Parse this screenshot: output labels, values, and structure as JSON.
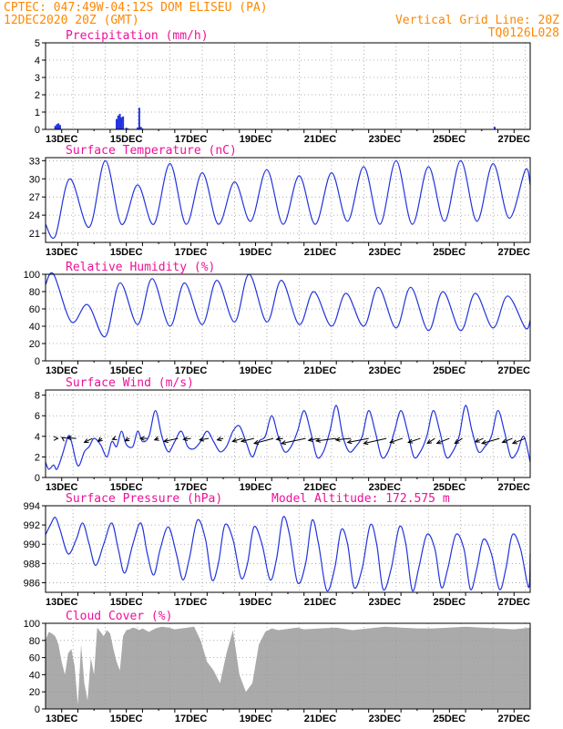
{
  "header": {
    "line1_left": "CPTEC:  047:49W-04:12S  DOM ELISEU (PA)",
    "line2_left": "12DEC2020 20Z (GMT)",
    "line1_right": "Vertical Grid Line: 20Z",
    "line2_right": "TQ0126L028"
  },
  "colors": {
    "header": "#ff8800",
    "panel_title": "#ee1099",
    "series": "#2233dd",
    "cloud": "#aaaaaa",
    "grid": "#999999"
  },
  "chart_data": [
    {
      "id": "precip",
      "type": "bar",
      "title": "Precipitation (mm/h)",
      "ylim": [
        0,
        5
      ],
      "yticks": [
        0,
        1,
        2,
        3,
        4,
        5
      ],
      "xlim_days": [
        0,
        15
      ],
      "x_tick_labels": [
        "13DEC",
        "15DEC",
        "17DEC",
        "19DEC",
        "21DEC",
        "23DEC",
        "25DEC",
        "27DEC"
      ],
      "x_days": [
        0.3,
        0.35,
        0.4,
        0.45,
        2.2,
        2.25,
        2.3,
        2.35,
        2.4,
        2.5,
        2.55,
        2.85,
        2.9,
        2.95,
        3.0,
        13.9
      ],
      "values": [
        0.2,
        0.3,
        0.35,
        0.25,
        0.6,
        0.8,
        0.9,
        0.7,
        0.75,
        0.1,
        0.05,
        0.1,
        1.25,
        0.15,
        0.05,
        0.15
      ]
    },
    {
      "id": "temperature",
      "type": "line",
      "title": "Surface Temperature (nC)",
      "ylim": [
        19.5,
        33.5
      ],
      "yticks": [
        21,
        24,
        27,
        30,
        33
      ],
      "xlim_days": [
        0,
        15
      ],
      "x_tick_labels": [
        "13DEC",
        "15DEC",
        "17DEC",
        "19DEC",
        "21DEC",
        "23DEC",
        "25DEC",
        "27DEC"
      ],
      "max_days": [
        0.75,
        1.85,
        2.85,
        3.85,
        4.85,
        5.85,
        6.85,
        7.85,
        8.85,
        9.85,
        10.85,
        11.85,
        12.85,
        13.85,
        14.85
      ],
      "max_values": [
        30.0,
        33.0,
        29.0,
        32.5,
        31.0,
        29.5,
        31.5,
        30.5,
        31.0,
        32.0,
        33.0,
        32.0,
        33.0,
        32.5,
        31.5
      ],
      "min_days": [
        0.3,
        1.35,
        2.35,
        3.35,
        4.35,
        5.35,
        6.35,
        7.35,
        8.35,
        9.35,
        10.35,
        11.35,
        12.35,
        13.35,
        14.35
      ],
      "min_values": [
        20.5,
        22.0,
        22.5,
        22.5,
        22.5,
        22.5,
        23.0,
        22.5,
        22.5,
        23.0,
        22.5,
        22.5,
        23.0,
        23.0,
        23.5
      ],
      "start_value": 22.5,
      "end_value": 29.0
    },
    {
      "id": "humidity",
      "type": "line",
      "title": "Relative Humidity (%)",
      "ylim": [
        0,
        100
      ],
      "yticks": [
        0,
        20,
        40,
        60,
        80,
        100
      ],
      "xlim_days": [
        0,
        15
      ],
      "x_tick_labels": [
        "13DEC",
        "15DEC",
        "17DEC",
        "19DEC",
        "21DEC",
        "23DEC",
        "25DEC",
        "27DEC"
      ],
      "max_days": [
        0.25,
        1.3,
        2.3,
        3.3,
        4.3,
        5.3,
        6.3,
        7.3,
        8.3,
        9.3,
        10.3,
        11.3,
        12.3,
        13.3,
        14.3
      ],
      "max_values": [
        100,
        65,
        90,
        95,
        90,
        93,
        100,
        93,
        80,
        78,
        85,
        85,
        80,
        78,
        75
      ],
      "min_days": [
        0.8,
        1.85,
        2.85,
        3.85,
        4.85,
        5.85,
        6.85,
        7.85,
        8.85,
        9.85,
        10.85,
        11.85,
        12.85,
        13.85,
        14.85
      ],
      "min_values": [
        45,
        28,
        42,
        40,
        42,
        45,
        45,
        42,
        40,
        40,
        38,
        35,
        35,
        38,
        38
      ],
      "start_value": 88,
      "end_value": 47
    },
    {
      "id": "wind",
      "type": "line",
      "title": "Surface Wind (m/s)",
      "ylim": [
        0,
        8.5
      ],
      "yticks": [
        0,
        2,
        4,
        6,
        8
      ],
      "xlim_days": [
        0,
        15
      ],
      "x_tick_labels": [
        "13DEC",
        "15DEC",
        "17DEC",
        "19DEC",
        "21DEC",
        "23DEC",
        "25DEC",
        "27DEC"
      ],
      "days": [
        0,
        0.1,
        0.25,
        0.35,
        0.5,
        0.7,
        0.8,
        0.95,
        1.05,
        1.2,
        1.35,
        1.5,
        1.7,
        1.9,
        2.05,
        2.2,
        2.35,
        2.5,
        2.7,
        2.85,
        3.0,
        3.2,
        3.4,
        3.6,
        3.8,
        4.0,
        4.2,
        4.4,
        4.6,
        4.8,
        5.0,
        5.2,
        5.4,
        5.6,
        5.8,
        6.0,
        6.2,
        6.4,
        6.6,
        6.8,
        7.0,
        7.2,
        7.4,
        7.6,
        7.8,
        8.0,
        8.2,
        8.4,
        8.6,
        8.8,
        9.0,
        9.2,
        9.4,
        9.6,
        9.8,
        10.0,
        10.2,
        10.4,
        10.6,
        10.8,
        11.0,
        11.2,
        11.4,
        11.6,
        11.8,
        12.0,
        12.2,
        12.4,
        12.6,
        12.8,
        13.0,
        13.2,
        13.4,
        13.6,
        13.8,
        14.0,
        14.2,
        14.4,
        14.6,
        14.8,
        15.0
      ],
      "values": [
        1.5,
        0.8,
        1.2,
        0.8,
        2.0,
        4.0,
        3.5,
        1.5,
        1.2,
        2.5,
        3.0,
        3.8,
        3.2,
        2.0,
        3.5,
        3.0,
        4.5,
        3.2,
        3.0,
        4.5,
        3.5,
        4.0,
        6.5,
        4.0,
        2.5,
        3.5,
        4.5,
        3.0,
        2.8,
        3.5,
        4.5,
        3.5,
        2.5,
        3.0,
        4.5,
        5.0,
        3.5,
        2.0,
        3.5,
        4.0,
        6.0,
        4.0,
        2.5,
        3.0,
        4.5,
        6.5,
        4.5,
        2.0,
        2.5,
        4.5,
        7.0,
        4.0,
        2.5,
        3.0,
        4.0,
        6.5,
        4.5,
        2.0,
        2.5,
        4.5,
        6.5,
        4.5,
        2.0,
        2.5,
        4.0,
        6.5,
        4.5,
        2.0,
        2.5,
        4.0,
        7.0,
        4.5,
        2.5,
        3.0,
        4.0,
        6.5,
        4.5,
        2.0,
        2.5,
        4.0,
        1.5
      ],
      "vector_days": [
        0.35,
        0.55,
        0.95,
        1.45,
        1.75,
        2.15,
        2.6,
        3.15,
        3.5,
        4.1,
        4.5,
        5.05,
        5.5,
        6.1,
        6.45,
        7.05,
        7.35,
        8.05,
        8.45,
        9.0,
        9.45,
        10.0,
        10.55,
        11.05,
        11.6,
        12.05,
        12.5,
        12.9,
        13.55,
        14.05,
        14.45,
        14.85
      ],
      "vector_u": [
        0.2,
        -0.3,
        -1.8,
        -1.6,
        -0.8,
        -0.5,
        -0.9,
        -1.4,
        -0.8,
        -2.8,
        -1.5,
        -1.8,
        -1.2,
        -2.0,
        -2.5,
        -3.8,
        -1.3,
        -4.8,
        -2.0,
        -4.0,
        -3.0,
        -4.2,
        -4.5,
        -2.5,
        -2.4,
        -1.5,
        -2.5,
        -1.5,
        -1.6,
        -3.5,
        -2.0,
        -2.5
      ],
      "vector_v": [
        0.0,
        0.2,
        0.1,
        -0.8,
        -0.6,
        -0.2,
        -0.5,
        0.0,
        -0.3,
        -0.6,
        -0.2,
        -0.3,
        -0.3,
        -0.6,
        -0.6,
        -1.0,
        -0.2,
        -1.0,
        -0.4,
        -0.5,
        -0.3,
        -0.8,
        -1.0,
        -0.8,
        -0.8,
        -1.0,
        -1.0,
        -1.0,
        -0.7,
        -1.0,
        -0.8,
        -1.0
      ]
    },
    {
      "id": "pressure",
      "type": "line",
      "title": "Surface Pressure (hPa)",
      "subtitle": "Model Altitude: 172.575 m",
      "ylim": [
        985,
        994
      ],
      "yticks": [
        986,
        988,
        990,
        992,
        994
      ],
      "xlim_days": [
        0,
        15
      ],
      "x_tick_labels": [
        "13DEC",
        "15DEC",
        "17DEC",
        "19DEC",
        "21DEC",
        "23DEC",
        "25DEC",
        "27DEC"
      ],
      "days": [
        0,
        0.15,
        0.3,
        0.45,
        0.7,
        0.95,
        1.15,
        1.35,
        1.55,
        1.8,
        2.05,
        2.25,
        2.45,
        2.7,
        2.95,
        3.15,
        3.35,
        3.55,
        3.8,
        4.05,
        4.25,
        4.45,
        4.7,
        4.95,
        5.15,
        5.35,
        5.55,
        5.8,
        6.05,
        6.25,
        6.45,
        6.7,
        6.95,
        7.15,
        7.35,
        7.55,
        7.8,
        8.05,
        8.25,
        8.45,
        8.7,
        8.95,
        9.15,
        9.35,
        9.55,
        9.8,
        10.05,
        10.25,
        10.45,
        10.7,
        10.95,
        11.15,
        11.35,
        11.55,
        11.8,
        12.05,
        12.25,
        12.45,
        12.7,
        12.95,
        13.15,
        13.35,
        13.55,
        13.8,
        14.05,
        14.25,
        14.45,
        14.7,
        14.95,
        15.0
      ],
      "values": [
        991.0,
        992.0,
        992.8,
        991.5,
        989.0,
        990.5,
        992.2,
        990.0,
        987.8,
        990.0,
        992.2,
        989.5,
        987.0,
        990.0,
        992.2,
        989.0,
        986.8,
        989.5,
        991.8,
        989.0,
        986.3,
        988.5,
        992.5,
        990.5,
        986.3,
        988.0,
        992.0,
        990.5,
        986.5,
        988.0,
        991.8,
        990.0,
        986.3,
        988.5,
        992.8,
        991.0,
        986.0,
        988.0,
        992.5,
        990.0,
        985.2,
        987.5,
        991.5,
        990.0,
        985.5,
        987.5,
        992.0,
        990.0,
        985.3,
        987.5,
        991.8,
        990.0,
        985.2,
        987.5,
        991.0,
        989.5,
        985.5,
        987.5,
        991.0,
        989.5,
        985.3,
        987.5,
        990.5,
        989.0,
        985.3,
        987.5,
        991.0,
        989.5,
        985.5,
        989.0
      ]
    },
    {
      "id": "cloud",
      "type": "area",
      "title": "Cloud Cover (%)",
      "ylim": [
        0,
        100
      ],
      "yticks": [
        0,
        20,
        40,
        60,
        80,
        100
      ],
      "xlim_days": [
        0,
        15
      ],
      "x_tick_labels": [
        "13DEC",
        "15DEC",
        "17DEC",
        "19DEC",
        "21DEC",
        "23DEC",
        "25DEC",
        "27DEC"
      ],
      "days": [
        0,
        0.1,
        0.2,
        0.3,
        0.4,
        0.5,
        0.6,
        0.7,
        0.8,
        0.9,
        1.0,
        1.1,
        1.2,
        1.3,
        1.4,
        1.5,
        1.6,
        1.7,
        1.8,
        1.9,
        2.0,
        2.1,
        2.2,
        2.3,
        2.4,
        2.5,
        2.6,
        2.7,
        2.8,
        2.9,
        3.0,
        3.2,
        3.4,
        3.6,
        3.8,
        4.0,
        4.2,
        4.4,
        4.6,
        4.8,
        5.0,
        5.2,
        5.4,
        5.6,
        5.8,
        6.0,
        6.2,
        6.4,
        6.6,
        6.8,
        7.0,
        7.2,
        7.4,
        7.6,
        7.8,
        8.0,
        8.5,
        9.0,
        9.5,
        10.0,
        10.5,
        11.0,
        11.5,
        12.0,
        12.5,
        13.0,
        13.5,
        14.0,
        14.5,
        15.0
      ],
      "values": [
        80,
        90,
        88,
        85,
        75,
        55,
        40,
        65,
        70,
        50,
        5,
        75,
        30,
        10,
        60,
        40,
        95,
        90,
        85,
        92,
        88,
        70,
        55,
        45,
        85,
        92,
        93,
        95,
        94,
        92,
        94,
        90,
        94,
        96,
        95,
        93,
        94,
        95,
        96,
        80,
        55,
        45,
        30,
        65,
        92,
        40,
        20,
        30,
        75,
        90,
        94,
        92,
        93,
        94,
        95,
        93,
        94,
        95,
        92,
        94,
        96,
        95,
        94,
        94,
        95,
        96,
        95,
        94,
        93,
        95
      ]
    }
  ]
}
